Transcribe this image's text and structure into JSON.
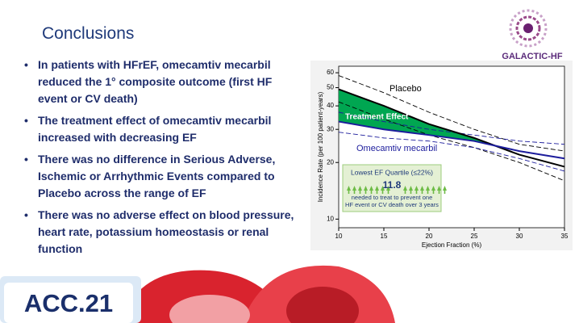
{
  "header": {
    "title": "Conclusions",
    "logo": "GALACTIC-HF"
  },
  "bullets": [
    "In patients with HFrEF, omecamtiv mecarbil reduced the 1° composite outcome (first HF event or CV death)",
    "The treatment effect of omecamtiv mecarbil increased with decreasing EF",
    "There was no difference in Serious Adverse, Ischemic or Arrhythmic Events compared to Placebo across the range of EF",
    "There was no adverse effect on blood pressure, heart rate, potassium homeostasis or renal function"
  ],
  "chart_data": {
    "type": "line",
    "x": [
      10,
      15,
      20,
      25,
      30,
      35
    ],
    "series": [
      {
        "name": "Placebo",
        "color": "#000000",
        "values": [
          49,
          40,
          32,
          27,
          22,
          19
        ]
      },
      {
        "name": "Omecamtiv mecarbil",
        "color": "#1c1c9c",
        "values": [
          33,
          30,
          28,
          26,
          23,
          21
        ]
      }
    ],
    "confidence_bands": [
      {
        "color": "#000000",
        "lower": [
          42,
          34,
          28,
          24,
          20,
          16
        ],
        "upper": [
          58,
          47,
          37,
          30,
          25,
          23
        ]
      },
      {
        "color": "#1c1c9c",
        "lower": [
          29,
          27,
          26,
          24,
          21,
          18
        ],
        "upper": [
          37,
          33,
          30,
          28,
          26,
          25
        ]
      }
    ],
    "fill_color": "#00a651",
    "annotation": "Treatment Effect",
    "xlabel": "Ejection Fraction (%)",
    "ylabel": "Incidence Rate (per 100 patient-years)",
    "xlim": [
      10,
      35
    ],
    "ylim": [
      9,
      65
    ],
    "xticks": [
      10,
      15,
      20,
      25,
      30,
      35
    ],
    "yticks": [
      10,
      20,
      30,
      40,
      50,
      60
    ],
    "log_y": true,
    "callout": {
      "title": "Lowest EF Quartile (≤22%)",
      "value": 11.8,
      "text": [
        "needed to treat to prevent one",
        "HF event or CV death over 3 years"
      ]
    }
  },
  "footer": {
    "logo": "ACC.21"
  }
}
